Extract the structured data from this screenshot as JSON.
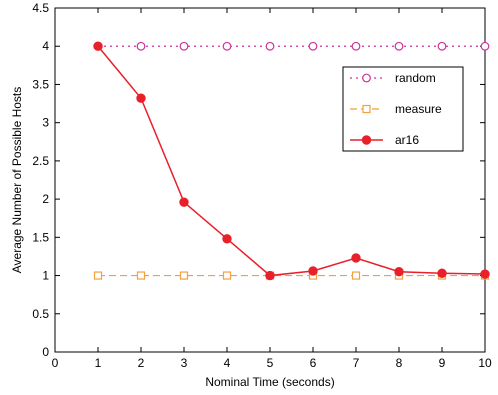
{
  "chart_data": {
    "type": "line",
    "xlabel": "Nominal Time (seconds)",
    "ylabel": "Average Number of Possible Hosts",
    "xlim": [
      0,
      10
    ],
    "ylim": [
      0,
      4.5
    ],
    "x_ticks": [
      0,
      1,
      2,
      3,
      4,
      5,
      6,
      7,
      8,
      9,
      10
    ],
    "y_ticks": [
      0,
      0.5,
      1,
      1.5,
      2,
      2.5,
      3,
      3.5,
      4,
      4.5
    ],
    "grid": false,
    "legend_position": "right, upper-middle",
    "x": [
      1,
      2,
      3,
      4,
      5,
      6,
      7,
      8,
      9,
      10
    ],
    "series": [
      {
        "name": "random",
        "values": [
          4,
          4,
          4,
          4,
          4,
          4,
          4,
          4,
          4,
          4
        ],
        "color": "#cc3399",
        "marker": "open-circle",
        "line_style": "dotted"
      },
      {
        "name": "measure",
        "values": [
          1,
          1,
          1,
          1,
          1,
          1,
          1,
          1,
          1,
          1
        ],
        "color": "#f0a040",
        "marker": "open-square",
        "line_style": "dashed"
      },
      {
        "name": "ar16",
        "values": [
          4,
          3.32,
          1.96,
          1.48,
          1.0,
          1.06,
          1.23,
          1.05,
          1.03,
          1.02
        ],
        "color": "#e8202a",
        "marker": "filled-circle",
        "line_style": "solid"
      }
    ]
  }
}
